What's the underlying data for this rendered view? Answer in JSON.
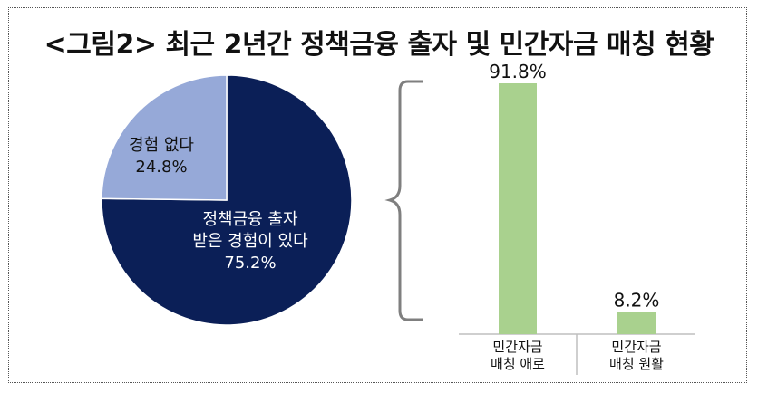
{
  "title": "<그림2> 최근 2년간 정책금융 출자 및 민간자금 매칭 현황",
  "colors": {
    "pie_major": "#0b1f57",
    "pie_minor": "#96a9d8",
    "bar": "#a9d18e",
    "bracket": "#7f7f7f"
  },
  "chart_data": [
    {
      "type": "pie",
      "slices": [
        {
          "label_lines": [
            "정책금융 출자",
            "받은 경험이 있다"
          ],
          "value_label": "75.2%",
          "value": 75.2
        },
        {
          "label_lines": [
            "경험 없다"
          ],
          "value_label": "24.8%",
          "value": 24.8
        }
      ]
    },
    {
      "type": "bar",
      "categories": [
        [
          "민간자금",
          "매칭 애로"
        ],
        [
          "민간자금",
          "매칭 원활"
        ]
      ],
      "values": [
        91.8,
        8.2
      ],
      "value_labels": [
        "91.8%",
        "8.2%"
      ],
      "ylim": [
        0,
        100
      ]
    }
  ]
}
